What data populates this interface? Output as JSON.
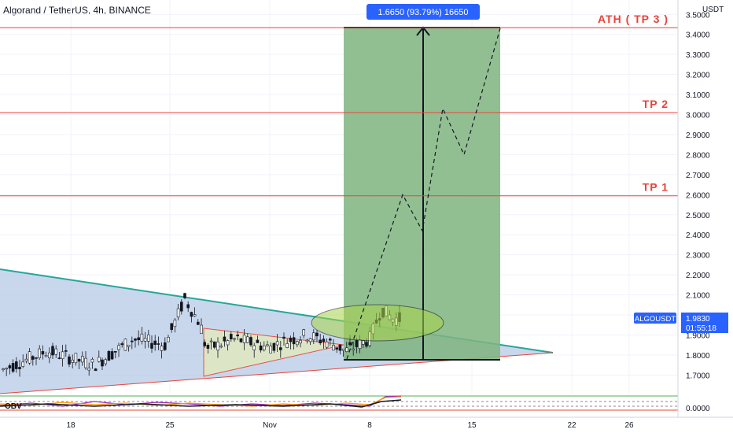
{
  "title": "Algorand / TetherUS, 4h, BINANCE",
  "currency": "USDT",
  "measure_label": "1.6650 (93.79%) 16650",
  "ticker_label": "ALGOUSDT",
  "indicator_label": "OBV",
  "colors": {
    "up": "#ffffff",
    "down": "#131722",
    "tp_line": "#e8433a",
    "triangle_fill": "#b6c9e6",
    "target_zone": "#7fb47f",
    "ticker_badge": "#2962ff"
  },
  "chart_data": {
    "type": "candlestick",
    "ylim": [
      1.6,
      3.5
    ],
    "y_ticks": [
      "1.7000",
      "1.8000",
      "1.9000",
      "2.0000",
      "2.1000",
      "2.2000",
      "2.3000",
      "2.4000",
      "2.5000",
      "2.6000",
      "2.7000",
      "2.8000",
      "2.9000",
      "3.0000",
      "3.1000",
      "3.2000",
      "3.3000",
      "3.4000",
      "3.5000"
    ],
    "x_ticks": [
      "18",
      "25",
      "Nov",
      "8",
      "15",
      "22",
      "26"
    ],
    "levels": [
      {
        "label": "ATH ( TP 3 )",
        "value": 3.4335,
        "price_label": "3.4335"
      },
      {
        "label": "TP 2",
        "value": 3.01,
        "price_label": "3.0100"
      },
      {
        "label": "TP 1",
        "value": 2.5944,
        "price_label": "2.5944"
      }
    ],
    "last_price": "1.9830",
    "countdown": "01:55:18",
    "indicator_tick": "0.0000",
    "projection_path": [
      1.78,
      2.6,
      2.42,
      3.03,
      2.8,
      3.43
    ]
  }
}
